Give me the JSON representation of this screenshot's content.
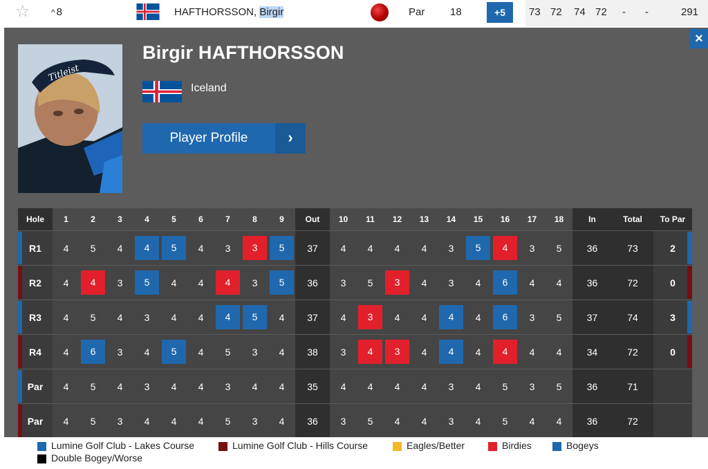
{
  "top_row": {
    "position": "8",
    "position_caret": "^",
    "player_name_last": "HAFTHORSSON, ",
    "player_name_first": "Birgir",
    "par_label": "Par",
    "thru": "18",
    "to_par": "+5",
    "rounds": [
      "73",
      "72",
      "74",
      "72",
      "-",
      "-"
    ],
    "total": "291"
  },
  "player": {
    "full_name": "Birgir HAFTHORSSON",
    "country": "Iceland",
    "profile_button": "Player Profile"
  },
  "colors": {
    "lakes": "#1f68ad",
    "hills": "#750f12",
    "eagles": "#f6b926",
    "birdies": "#e1202b",
    "bogeys": "#1f68ad",
    "double": "#000000"
  },
  "scorecard": {
    "headers": {
      "hole": "Hole",
      "front": [
        "1",
        "2",
        "3",
        "4",
        "5",
        "6",
        "7",
        "8",
        "9"
      ],
      "out": "Out",
      "back": [
        "10",
        "11",
        "12",
        "13",
        "14",
        "15",
        "16",
        "17",
        "18"
      ],
      "in": "In",
      "total": "Total",
      "to_par": "To Par"
    },
    "rows": [
      {
        "label": "R1",
        "course": "lakes",
        "front": [
          "4",
          "5",
          "4",
          "4",
          "5",
          "4",
          "3",
          "3",
          "5"
        ],
        "front_marks": [
          "",
          "",
          "",
          "bogey",
          "bogey",
          "",
          "",
          "birdie",
          "bogey"
        ],
        "out": "37",
        "back": [
          "4",
          "4",
          "4",
          "4",
          "3",
          "5",
          "4",
          "3",
          "5"
        ],
        "back_marks": [
          "",
          "",
          "",
          "",
          "",
          "bogey",
          "birdie",
          "",
          ""
        ],
        "in": "36",
        "total": "73",
        "to_par": "2"
      },
      {
        "label": "R2",
        "course": "hills",
        "front": [
          "4",
          "4",
          "3",
          "5",
          "4",
          "4",
          "4",
          "3",
          "5"
        ],
        "front_marks": [
          "",
          "birdie",
          "",
          "bogey",
          "",
          "",
          "birdie",
          "",
          "bogey"
        ],
        "out": "36",
        "back": [
          "3",
          "5",
          "3",
          "4",
          "3",
          "4",
          "6",
          "4",
          "4"
        ],
        "back_marks": [
          "",
          "",
          "birdie",
          "",
          "",
          "",
          "bogey",
          "",
          ""
        ],
        "in": "36",
        "total": "72",
        "to_par": "0"
      },
      {
        "label": "R3",
        "course": "lakes",
        "front": [
          "4",
          "5",
          "4",
          "3",
          "4",
          "4",
          "4",
          "5",
          "4"
        ],
        "front_marks": [
          "",
          "",
          "",
          "",
          "",
          "",
          "bogey",
          "bogey",
          ""
        ],
        "out": "37",
        "back": [
          "4",
          "3",
          "4",
          "4",
          "4",
          "4",
          "6",
          "3",
          "5"
        ],
        "back_marks": [
          "",
          "birdie",
          "",
          "",
          "bogey",
          "",
          "bogey",
          "",
          ""
        ],
        "in": "37",
        "total": "74",
        "to_par": "3"
      },
      {
        "label": "R4",
        "course": "hills",
        "front": [
          "4",
          "6",
          "3",
          "4",
          "5",
          "4",
          "5",
          "3",
          "4"
        ],
        "front_marks": [
          "",
          "bogey",
          "",
          "",
          "bogey",
          "",
          "",
          "",
          ""
        ],
        "out": "38",
        "back": [
          "3",
          "4",
          "3",
          "4",
          "4",
          "4",
          "4",
          "4",
          "4"
        ],
        "back_marks": [
          "",
          "birdie",
          "birdie",
          "",
          "bogey",
          "",
          "birdie",
          "",
          ""
        ],
        "in": "34",
        "total": "72",
        "to_par": "0"
      },
      {
        "label": "Par",
        "course": "lakes",
        "front": [
          "4",
          "5",
          "4",
          "3",
          "4",
          "4",
          "3",
          "4",
          "4"
        ],
        "front_marks": [
          "",
          "",
          "",
          "",
          "",
          "",
          "",
          "",
          ""
        ],
        "out": "35",
        "back": [
          "4",
          "4",
          "4",
          "4",
          "3",
          "4",
          "5",
          "3",
          "5"
        ],
        "back_marks": [
          "",
          "",
          "",
          "",
          "",
          "",
          "",
          "",
          ""
        ],
        "in": "36",
        "total": "71",
        "to_par": ""
      },
      {
        "label": "Par",
        "course": "hills",
        "front": [
          "4",
          "5",
          "3",
          "4",
          "4",
          "4",
          "5",
          "3",
          "4"
        ],
        "front_marks": [
          "",
          "",
          "",
          "",
          "",
          "",
          "",
          "",
          ""
        ],
        "out": "36",
        "back": [
          "3",
          "5",
          "4",
          "4",
          "3",
          "4",
          "5",
          "4",
          "4"
        ],
        "back_marks": [
          "",
          "",
          "",
          "",
          "",
          "",
          "",
          "",
          ""
        ],
        "in": "36",
        "total": "72",
        "to_par": ""
      }
    ]
  },
  "legend": {
    "lakes": "Lumine Golf Club - Lakes Course",
    "hills": "Lumine Golf Club - Hills Course",
    "eagles": "Eagles/Better",
    "birdies": "Birdies",
    "bogeys": "Bogeys",
    "double": "Double Bogey/Worse"
  }
}
